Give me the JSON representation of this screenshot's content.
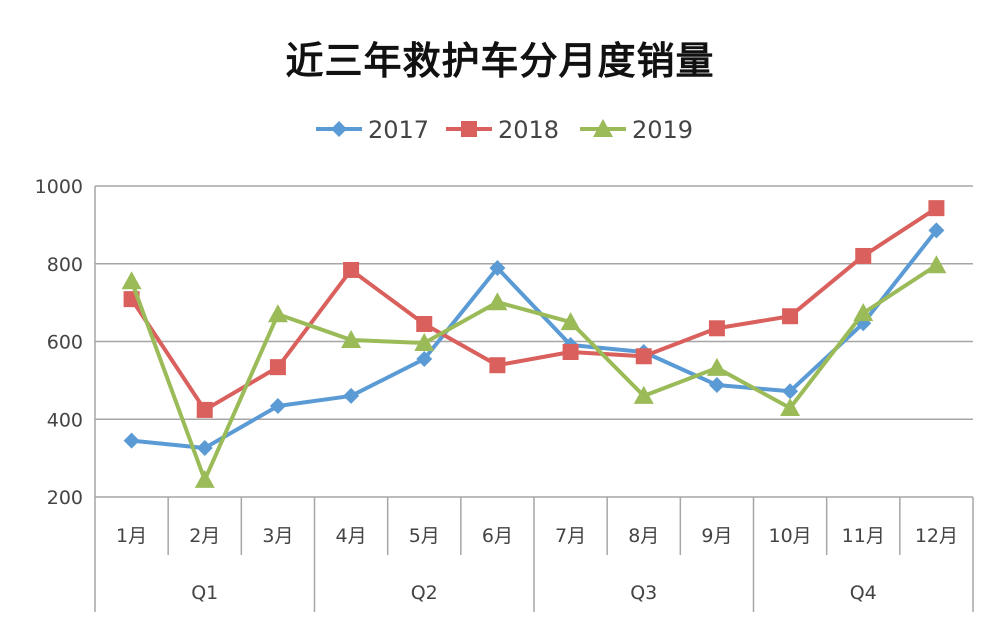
{
  "chart_data": {
    "type": "line",
    "title": "近三年救护车分月度销量",
    "categories": [
      "1月",
      "2月",
      "3月",
      "4月",
      "5月",
      "6月",
      "7月",
      "8月",
      "9月",
      "10月",
      "11月",
      "12月"
    ],
    "groups": [
      {
        "label": "Q1",
        "span": 3
      },
      {
        "label": "Q2",
        "span": 3
      },
      {
        "label": "Q3",
        "span": 3
      },
      {
        "label": "Q4",
        "span": 3
      }
    ],
    "series": [
      {
        "name": "2017",
        "color": "#5B9BD5",
        "marker": "diamond",
        "values": [
          345,
          326,
          434,
          460,
          555,
          789,
          591,
          573,
          488,
          472,
          647,
          886
        ]
      },
      {
        "name": "2018",
        "color": "#D9605C",
        "marker": "square",
        "values": [
          709,
          424,
          534,
          784,
          645,
          539,
          573,
          562,
          634,
          665,
          820,
          943
        ]
      },
      {
        "name": "2019",
        "color": "#9BBB59",
        "marker": "triangle",
        "values": [
          755,
          244,
          670,
          604,
          596,
          701,
          650,
          460,
          532,
          429,
          673,
          796
        ]
      }
    ],
    "ylim": [
      200,
      1000
    ],
    "yticks": [
      "200",
      "400",
      "600",
      "800",
      "1000"
    ],
    "grid": true,
    "legend": "top"
  }
}
